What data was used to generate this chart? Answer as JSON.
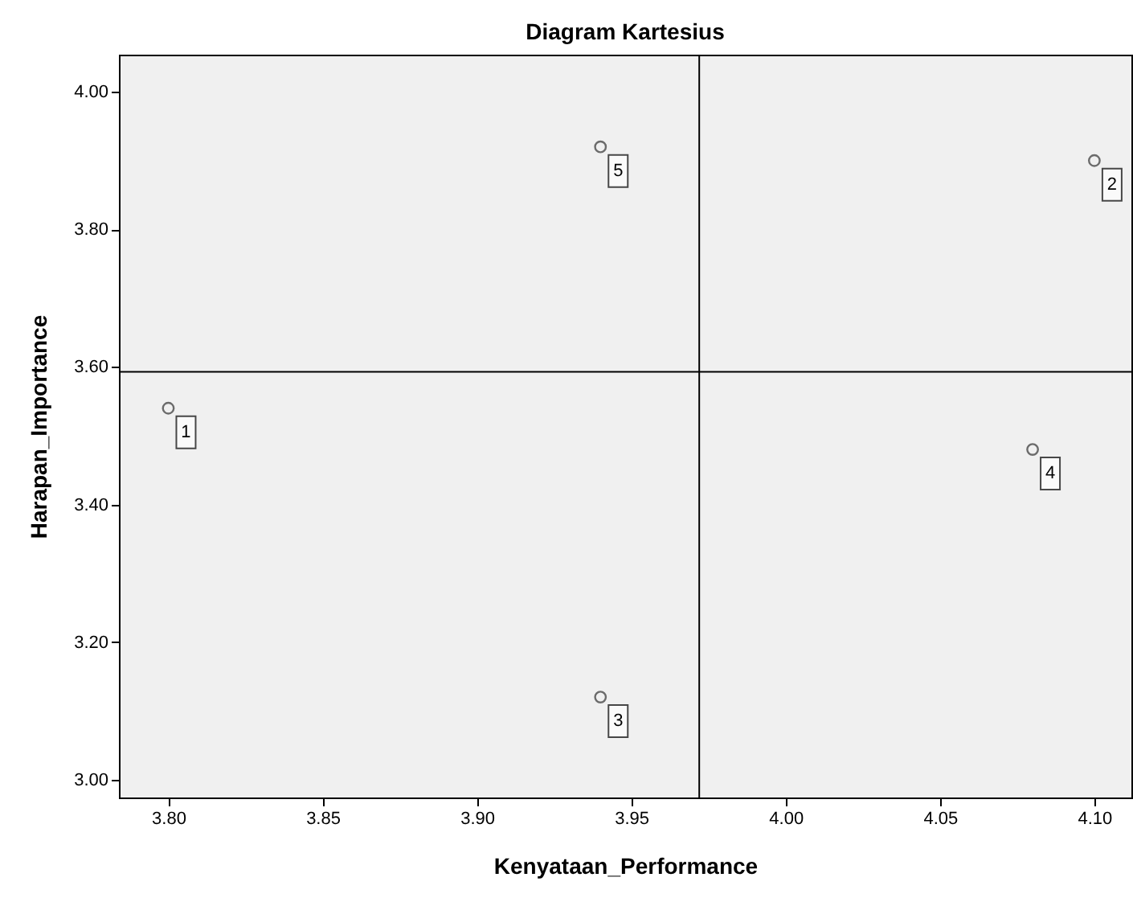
{
  "chart_data": {
    "type": "scatter",
    "title": "Diagram Kartesius",
    "xlabel": "Kenyataan_Performance",
    "ylabel": "Harapan_Importance",
    "x": [
      3.8,
      4.1,
      3.94,
      4.08,
      3.94
    ],
    "series": [
      {
        "color": "#333333",
        "values": [
          3.54,
          3.9,
          3.12,
          3.48,
          3.92
        ]
      }
    ],
    "marker": "circle",
    "xlim": [
      3.784,
      4.112
    ],
    "xticks": [
      {
        "value": 3.8,
        "label": "3.80"
      },
      3.85,
      {
        "value": 3.9,
        "label": "3.90"
      },
      3.95,
      {
        "value": 4,
        "label": "4.00"
      },
      4.05,
      {
        "value": 4.1,
        "label": "4.10"
      }
    ],
    "ylim": [
      2.974,
      4.054
    ],
    "yticks": [
      {
        "value": 3,
        "label": "3.00"
      },
      {
        "value": 3.2,
        "label": "3.20"
      },
      {
        "value": 3.4,
        "label": "3.40"
      },
      {
        "value": 3.6,
        "label": "3.60"
      },
      {
        "value": 3.8,
        "label": "3.80"
      },
      {
        "value": 4,
        "label": "4.00"
      }
    ],
    "ref_lines": [
      {
        "axis": "x",
        "value": 3.972,
        "color": "#000000"
      },
      {
        "axis": "y",
        "value": 3.593,
        "color": "#000000"
      }
    ],
    "annotations": [
      {
        "text": "1",
        "x": 3.8,
        "y": 3.54
      },
      {
        "text": "2",
        "x": 4.1,
        "y": 3.9
      },
      {
        "text": "3",
        "x": 3.94,
        "y": 3.12
      },
      {
        "text": "4",
        "x": 4.08,
        "y": 3.48
      },
      {
        "text": "5",
        "x": 3.94,
        "y": 3.92
      }
    ],
    "grid": false
  }
}
